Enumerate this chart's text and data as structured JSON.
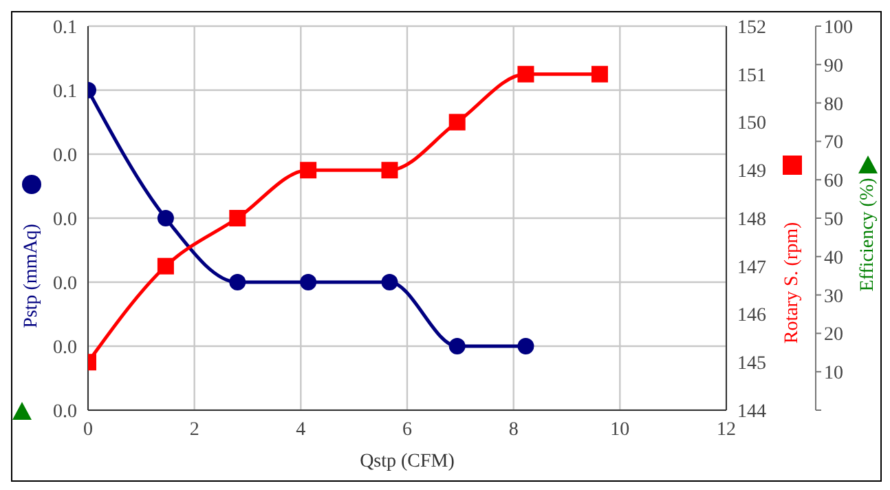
{
  "chart_data": {
    "type": "line",
    "xlabel": "Qstp (CFM)",
    "ylabel": "Pstp (mmAq)",
    "y2label": "Rotary S. (rpm)",
    "y3label": "Efficiency (%)",
    "xlim": [
      0,
      12
    ],
    "xticks": [
      0,
      2,
      4,
      6,
      8,
      10,
      12
    ],
    "ylim": [
      0,
      0.06
    ],
    "yticks": [
      {
        "value": 0,
        "label": "0.0"
      },
      {
        "value": 0.01,
        "label": "0.0"
      },
      {
        "value": 0.02,
        "label": "0.0"
      },
      {
        "value": 0.03,
        "label": "0.0"
      },
      {
        "value": 0.04,
        "label": "0.0"
      },
      {
        "value": 0.05,
        "label": "0.1"
      },
      {
        "value": 0.06,
        "label": "0.1"
      }
    ],
    "y2lim": [
      144,
      152
    ],
    "y2ticks": [
      144,
      145,
      146,
      147,
      148,
      149,
      150,
      151,
      152
    ],
    "y3lim": [
      0,
      100
    ],
    "y3ticks": [
      {
        "value": 0,
        "label": null
      },
      10,
      20,
      30,
      40,
      50,
      60,
      70,
      80,
      90,
      100
    ],
    "grid": true,
    "series": [
      {
        "color": "#000080",
        "marker": "circle",
        "x": [
          0,
          1.46,
          2.81,
          4.14,
          5.67,
          6.94,
          8.23
        ],
        "values": [
          0.05,
          0.03,
          0.02,
          0.02,
          0.02,
          0.01,
          0.01
        ]
      },
      {
        "color": "#ff0000",
        "marker": "square",
        "axis": "y2",
        "x": [
          0,
          1.46,
          2.81,
          4.14,
          5.67,
          6.94,
          8.23,
          9.62
        ],
        "values": [
          145,
          147,
          148,
          149,
          149,
          150,
          151,
          151
        ]
      }
    ]
  }
}
